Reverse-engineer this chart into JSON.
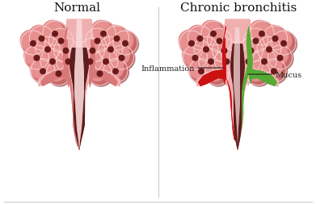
{
  "title_normal": "Normal",
  "title_chronic": "Chronic bronchitis",
  "label_inflammation": "Inflammation",
  "label_mucus": "Mucus",
  "bg_color": "#ffffff",
  "pink_lightest": "#f9d8d8",
  "pink_light": "#f0a8a8",
  "pink_mid": "#d97878",
  "pink_dark": "#b85555",
  "pink_deeper": "#9a3a3a",
  "dark_cavity": "#5a1a1a",
  "alveoli_face": "#e89090",
  "alveoli_mid": "#c86868",
  "alveoli_dark": "#8b3030",
  "alveoli_shadow": "#6a1a1a",
  "tube_outer_light": "#f0b0b0",
  "tube_outer_mid": "#e08888",
  "tube_inner_dark": "#7a2020",
  "inflammation_red": "#cc1111",
  "mucus_green": "#55aa33",
  "annotation_color": "#222222",
  "border_color": "#cccccc"
}
